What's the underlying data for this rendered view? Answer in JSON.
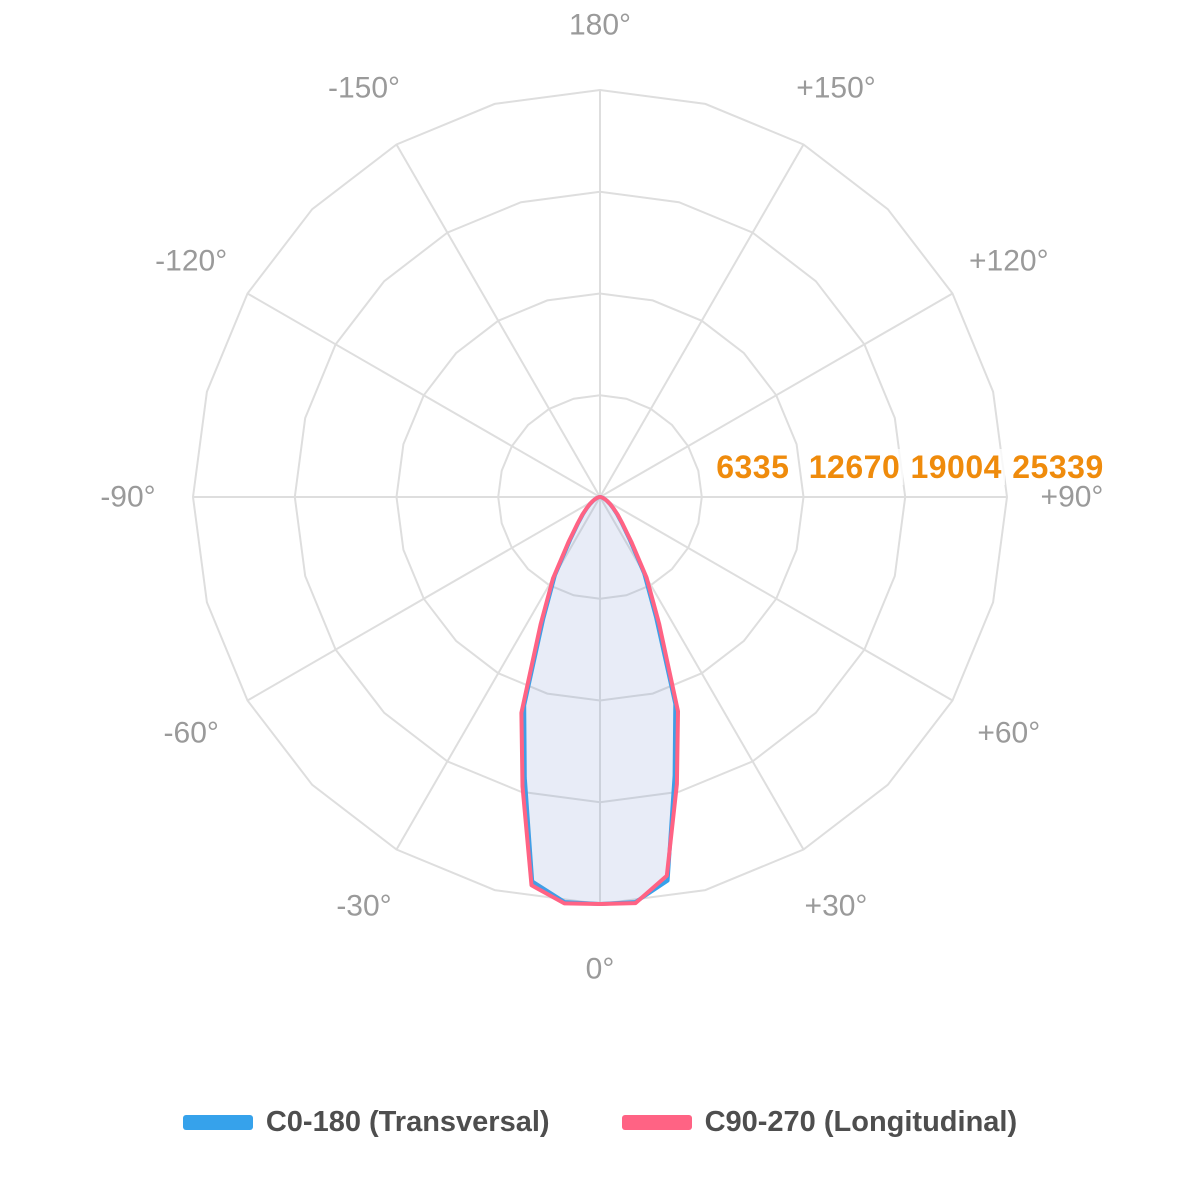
{
  "chart_data": {
    "type": "line",
    "subtype": "polar-photometric-intensity",
    "orientation": "0-degrees-at-bottom",
    "units": "cd",
    "angles_deg": [
      -90,
      -85,
      -80,
      -75,
      -70,
      -65,
      -60,
      -55,
      -50,
      -45,
      -40,
      -35,
      -30,
      -25,
      -20,
      -15,
      -10,
      -5,
      0,
      5,
      10,
      15,
      20,
      25,
      30,
      35,
      40,
      45,
      50,
      55,
      60,
      65,
      70,
      75,
      80,
      85,
      90
    ],
    "series": [
      {
        "name": "C0-180 (Transversal)",
        "color": "#36A2EB",
        "fill": "rgba(54,162,235,0.12)",
        "values": [
          10,
          40,
          90,
          150,
          240,
          360,
          520,
          750,
          1050,
          1500,
          2100,
          3250,
          5600,
          8350,
          13800,
          18100,
          24300,
          25320,
          25339,
          25320,
          24250,
          17950,
          13700,
          8250,
          5500,
          3200,
          2100,
          1500,
          1050,
          750,
          520,
          360,
          240,
          150,
          90,
          40,
          10
        ]
      },
      {
        "name": "C90-270 (Longitudinal)",
        "color": "#FF6384",
        "fill": "rgba(255,99,132,0.05)",
        "values": [
          12,
          45,
          95,
          160,
          255,
          380,
          545,
          785,
          1100,
          1560,
          2210,
          3420,
          5850,
          8750,
          14300,
          18650,
          24550,
          25400,
          25339,
          25380,
          23950,
          18500,
          14200,
          8700,
          5800,
          3400,
          2200,
          1560,
          1100,
          780,
          540,
          380,
          250,
          160,
          95,
          45,
          12
        ]
      }
    ],
    "radial_axis": {
      "min": 0,
      "max": 25339,
      "ticks": [
        {
          "value": 6335,
          "label": "6335"
        },
        {
          "value": 12670,
          "label": "12670"
        },
        {
          "value": 19004,
          "label": "19004"
        },
        {
          "value": 25339,
          "label": "25339"
        }
      ],
      "tick_color": "#EF8B0C",
      "tick_backdrop": "rgba(255,255,255,0.78)"
    },
    "angle_labels": [
      {
        "deg": 0,
        "label": "0°"
      },
      {
        "deg": 30,
        "label": "+30°"
      },
      {
        "deg": 60,
        "label": "+60°"
      },
      {
        "deg": 90,
        "label": "+90°"
      },
      {
        "deg": 120,
        "label": "+120°"
      },
      {
        "deg": 150,
        "label": "+150°"
      },
      {
        "deg": 180,
        "label": "180°"
      },
      {
        "deg": -150,
        "label": "-150°"
      },
      {
        "deg": -120,
        "label": "-120°"
      },
      {
        "deg": -90,
        "label": "-90°"
      },
      {
        "deg": -60,
        "label": "-60°"
      },
      {
        "deg": -30,
        "label": "-30°"
      }
    ],
    "grid": {
      "line_color": "#DEDEDE",
      "spoke_step_deg": 30,
      "ring_vertex_step_deg": 15,
      "angle_label_color": "#9A9A9A",
      "legend_position": "bottom"
    }
  }
}
